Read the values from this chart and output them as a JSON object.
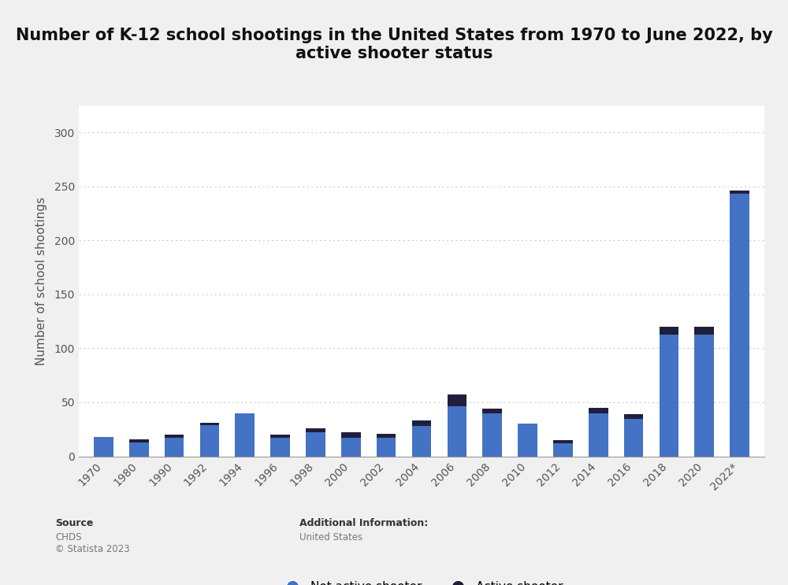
{
  "title": "Number of K-12 school shootings in the United States from 1970 to June 2022, by\nactive shooter status",
  "ylabel": "Number of school shootings",
  "years": [
    "1970",
    "1980",
    "1990",
    "1992",
    "1994",
    "1996",
    "1998",
    "2000",
    "2002",
    "2004",
    "2006",
    "2008",
    "2010",
    "2012",
    "2014",
    "2016",
    "2018",
    "2020",
    "2022*"
  ],
  "not_active": [
    18,
    13,
    17,
    29,
    40,
    17,
    22,
    17,
    17,
    28,
    46,
    40,
    30,
    12,
    40,
    35,
    113,
    113,
    243
  ],
  "active": [
    0,
    3,
    3,
    2,
    0,
    3,
    4,
    5,
    4,
    5,
    11,
    4,
    0,
    3,
    5,
    4,
    7,
    7,
    3
  ],
  "not_active_color": "#4472c4",
  "active_color": "#1f1f3d",
  "background_color": "#f0f0f0",
  "plot_bg_color": "#ffffff",
  "ylim": [
    0,
    325
  ],
  "yticks": [
    0,
    50,
    100,
    150,
    200,
    250,
    300
  ],
  "grid_color": "#cccccc",
  "title_fontsize": 15,
  "axis_label_fontsize": 11,
  "tick_fontsize": 10,
  "legend_fontsize": 11,
  "source_label": "Source",
  "source_body": "CHDS\n© Statista 2023",
  "additional_label": "Additional Information:",
  "additional_body": "United States"
}
